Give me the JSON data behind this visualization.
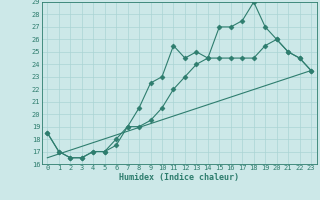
{
  "title": "",
  "xlabel": "Humidex (Indice chaleur)",
  "bg_color": "#cce8e8",
  "grid_color": "#aad4d4",
  "line_color": "#2e7d6e",
  "xlim": [
    -0.5,
    23.5
  ],
  "ylim": [
    16,
    29
  ],
  "xticks": [
    0,
    1,
    2,
    3,
    4,
    5,
    6,
    7,
    8,
    9,
    10,
    11,
    12,
    13,
    14,
    15,
    16,
    17,
    18,
    19,
    20,
    21,
    22,
    23
  ],
  "yticks": [
    16,
    17,
    18,
    19,
    20,
    21,
    22,
    23,
    24,
    25,
    26,
    27,
    28,
    29
  ],
  "line1_x": [
    0,
    1,
    2,
    3,
    4,
    5,
    6,
    7,
    8,
    9,
    10,
    11,
    12,
    13,
    14,
    15,
    16,
    17,
    18,
    19,
    20,
    21,
    22,
    23
  ],
  "line1_y": [
    18.5,
    17.0,
    16.5,
    16.5,
    17.0,
    17.0,
    17.5,
    19.0,
    20.5,
    22.5,
    23.0,
    25.5,
    24.5,
    25.0,
    24.5,
    27.0,
    27.0,
    27.5,
    29.0,
    27.0,
    26.0,
    25.0,
    24.5,
    23.5
  ],
  "line2_x": [
    0,
    1,
    2,
    3,
    4,
    5,
    6,
    7,
    8,
    9,
    10,
    11,
    12,
    13,
    14,
    15,
    16,
    17,
    18,
    19,
    20,
    21,
    22,
    23
  ],
  "line2_y": [
    18.5,
    17.0,
    16.5,
    16.5,
    17.0,
    17.0,
    18.0,
    19.0,
    19.0,
    19.5,
    20.5,
    22.0,
    23.0,
    24.0,
    24.5,
    24.5,
    24.5,
    24.5,
    24.5,
    25.5,
    26.0,
    25.0,
    24.5,
    23.5
  ],
  "line3_x": [
    0,
    23
  ],
  "line3_y": [
    16.5,
    23.5
  ],
  "tick_fontsize": 5,
  "xlabel_fontsize": 6,
  "marker_size": 2.5,
  "line_width": 0.8
}
